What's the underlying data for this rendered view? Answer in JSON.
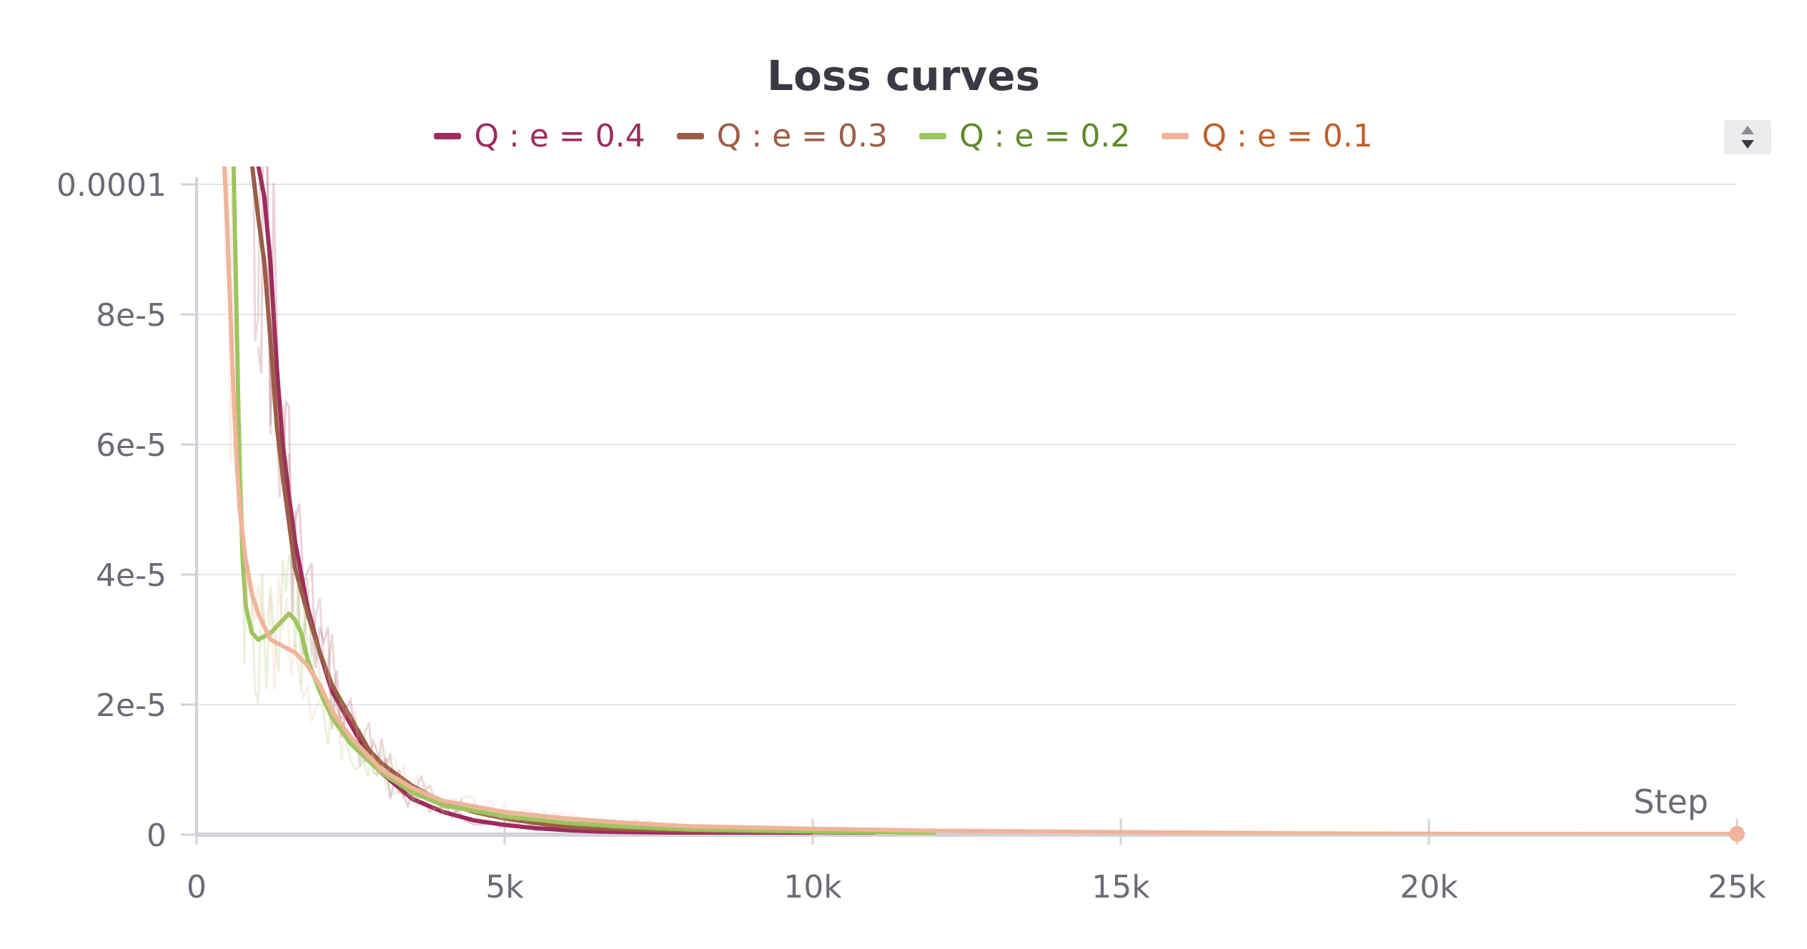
{
  "chart_data": {
    "type": "line",
    "title": "Loss curves",
    "xlabel": "Step",
    "ylabel": "",
    "xlim": [
      0,
      25000
    ],
    "ylim": [
      0,
      0.0001
    ],
    "grid": true,
    "legend_position": "top-center",
    "x_ticks": [
      "0",
      "5k",
      "10k",
      "15k",
      "20k",
      "25k"
    ],
    "x_tick_values": [
      0,
      5000,
      10000,
      15000,
      20000,
      25000
    ],
    "y_ticks": [
      "0",
      "2e-5",
      "4e-5",
      "6e-5",
      "8e-5",
      "0.0001"
    ],
    "y_tick_values": [
      0,
      2e-05,
      4e-05,
      6e-05,
      8e-05,
      0.0001
    ],
    "series": [
      {
        "name": "Q : e = 0.4",
        "color": "#9e2a5e",
        "label_color": "#9e2a5e",
        "x": [
          1000,
          1100,
          1200,
          1300,
          1400,
          1500,
          1600,
          1800,
          2000,
          2200,
          2500,
          2800,
          3000,
          3500,
          4000,
          4500,
          5000,
          5500,
          6000,
          6500,
          7000,
          8000,
          9000,
          10000
        ],
        "y": [
          0.000103,
          9.8e-05,
          8.8e-05,
          7.2e-05,
          6e-05,
          5.2e-05,
          4.5e-05,
          3.5e-05,
          2.8e-05,
          2.2e-05,
          1.7e-05,
          1.2e-05,
          9.5e-06,
          5.5e-06,
          3.5e-06,
          2.2e-06,
          1.5e-06,
          1e-06,
          7e-07,
          5e-07,
          4e-07,
          3e-07,
          2e-07,
          2e-07
        ]
      },
      {
        "name": "Q : e = 0.3",
        "color": "#9b5d47",
        "label_color": "#9b5d47",
        "x": [
          900,
          1000,
          1100,
          1200,
          1300,
          1400,
          1500,
          1600,
          1800,
          2000,
          2200,
          2500,
          2800,
          3000,
          3500,
          4000,
          4500,
          5000,
          5500,
          6000,
          7000,
          8000,
          9000,
          10000,
          11000
        ],
        "y": [
          0.000103,
          9.5e-05,
          8.8e-05,
          7.6e-05,
          6.3e-05,
          5.5e-05,
          4.8e-05,
          4.1e-05,
          3.4e-05,
          2.8e-05,
          2.3e-05,
          1.8e-05,
          1.3e-05,
          1.1e-05,
          7.5e-06,
          5e-06,
          3.5e-06,
          2.5e-06,
          1.8e-06,
          1.2e-06,
          8e-07,
          6e-07,
          5e-07,
          4e-07,
          3e-07
        ]
      },
      {
        "name": "Q : e = 0.2",
        "color": "#9cc55d",
        "label_color": "#5f8a2a",
        "x": [
          600,
          650,
          700,
          750,
          800,
          900,
          1000,
          1200,
          1400,
          1500,
          1600,
          1700,
          1800,
          2000,
          2200,
          2500,
          3000,
          3500,
          4000,
          5000,
          6000,
          7000,
          8000,
          10000,
          12000
        ],
        "y": [
          0.000103,
          8e-05,
          5.5e-05,
          4.2e-05,
          3.5e-05,
          3.1e-05,
          3e-05,
          3.1e-05,
          3.3e-05,
          3.4e-05,
          3.3e-05,
          3.1e-05,
          2.7e-05,
          2.2e-05,
          1.8e-05,
          1.4e-05,
          9.5e-06,
          6.5e-06,
          4.5e-06,
          2.8e-06,
          1.8e-06,
          1.2e-06,
          8e-07,
          5e-07,
          3e-07
        ]
      },
      {
        "name": "Q : e = 0.1",
        "color": "#efb49a",
        "label_color": "#c0602a",
        "x": [
          450,
          500,
          550,
          600,
          650,
          700,
          800,
          900,
          1000,
          1100,
          1200,
          1400,
          1600,
          1800,
          2000,
          2200,
          2500,
          3000,
          3500,
          4000,
          5000,
          6000,
          7000,
          8000,
          10000,
          12000,
          15000,
          18000,
          21000,
          25000
        ],
        "y": [
          0.000103,
          9.3e-05,
          8e-05,
          6.8e-05,
          5.8e-05,
          5e-05,
          4.2e-05,
          3.7e-05,
          3.4e-05,
          3.2e-05,
          3e-05,
          2.9e-05,
          2.8e-05,
          2.6e-05,
          2.3e-05,
          1.9e-05,
          1.5e-05,
          1e-05,
          7.2e-06,
          5.2e-06,
          3.5e-06,
          2.5e-06,
          1.8e-06,
          1.3e-06,
          9e-07,
          6e-07,
          4e-07,
          2e-07,
          1e-07,
          1e-07
        ]
      }
    ]
  },
  "controls": {
    "scroll_up_icon": "caret-up-icon",
    "scroll_down_icon": "caret-down-icon"
  }
}
